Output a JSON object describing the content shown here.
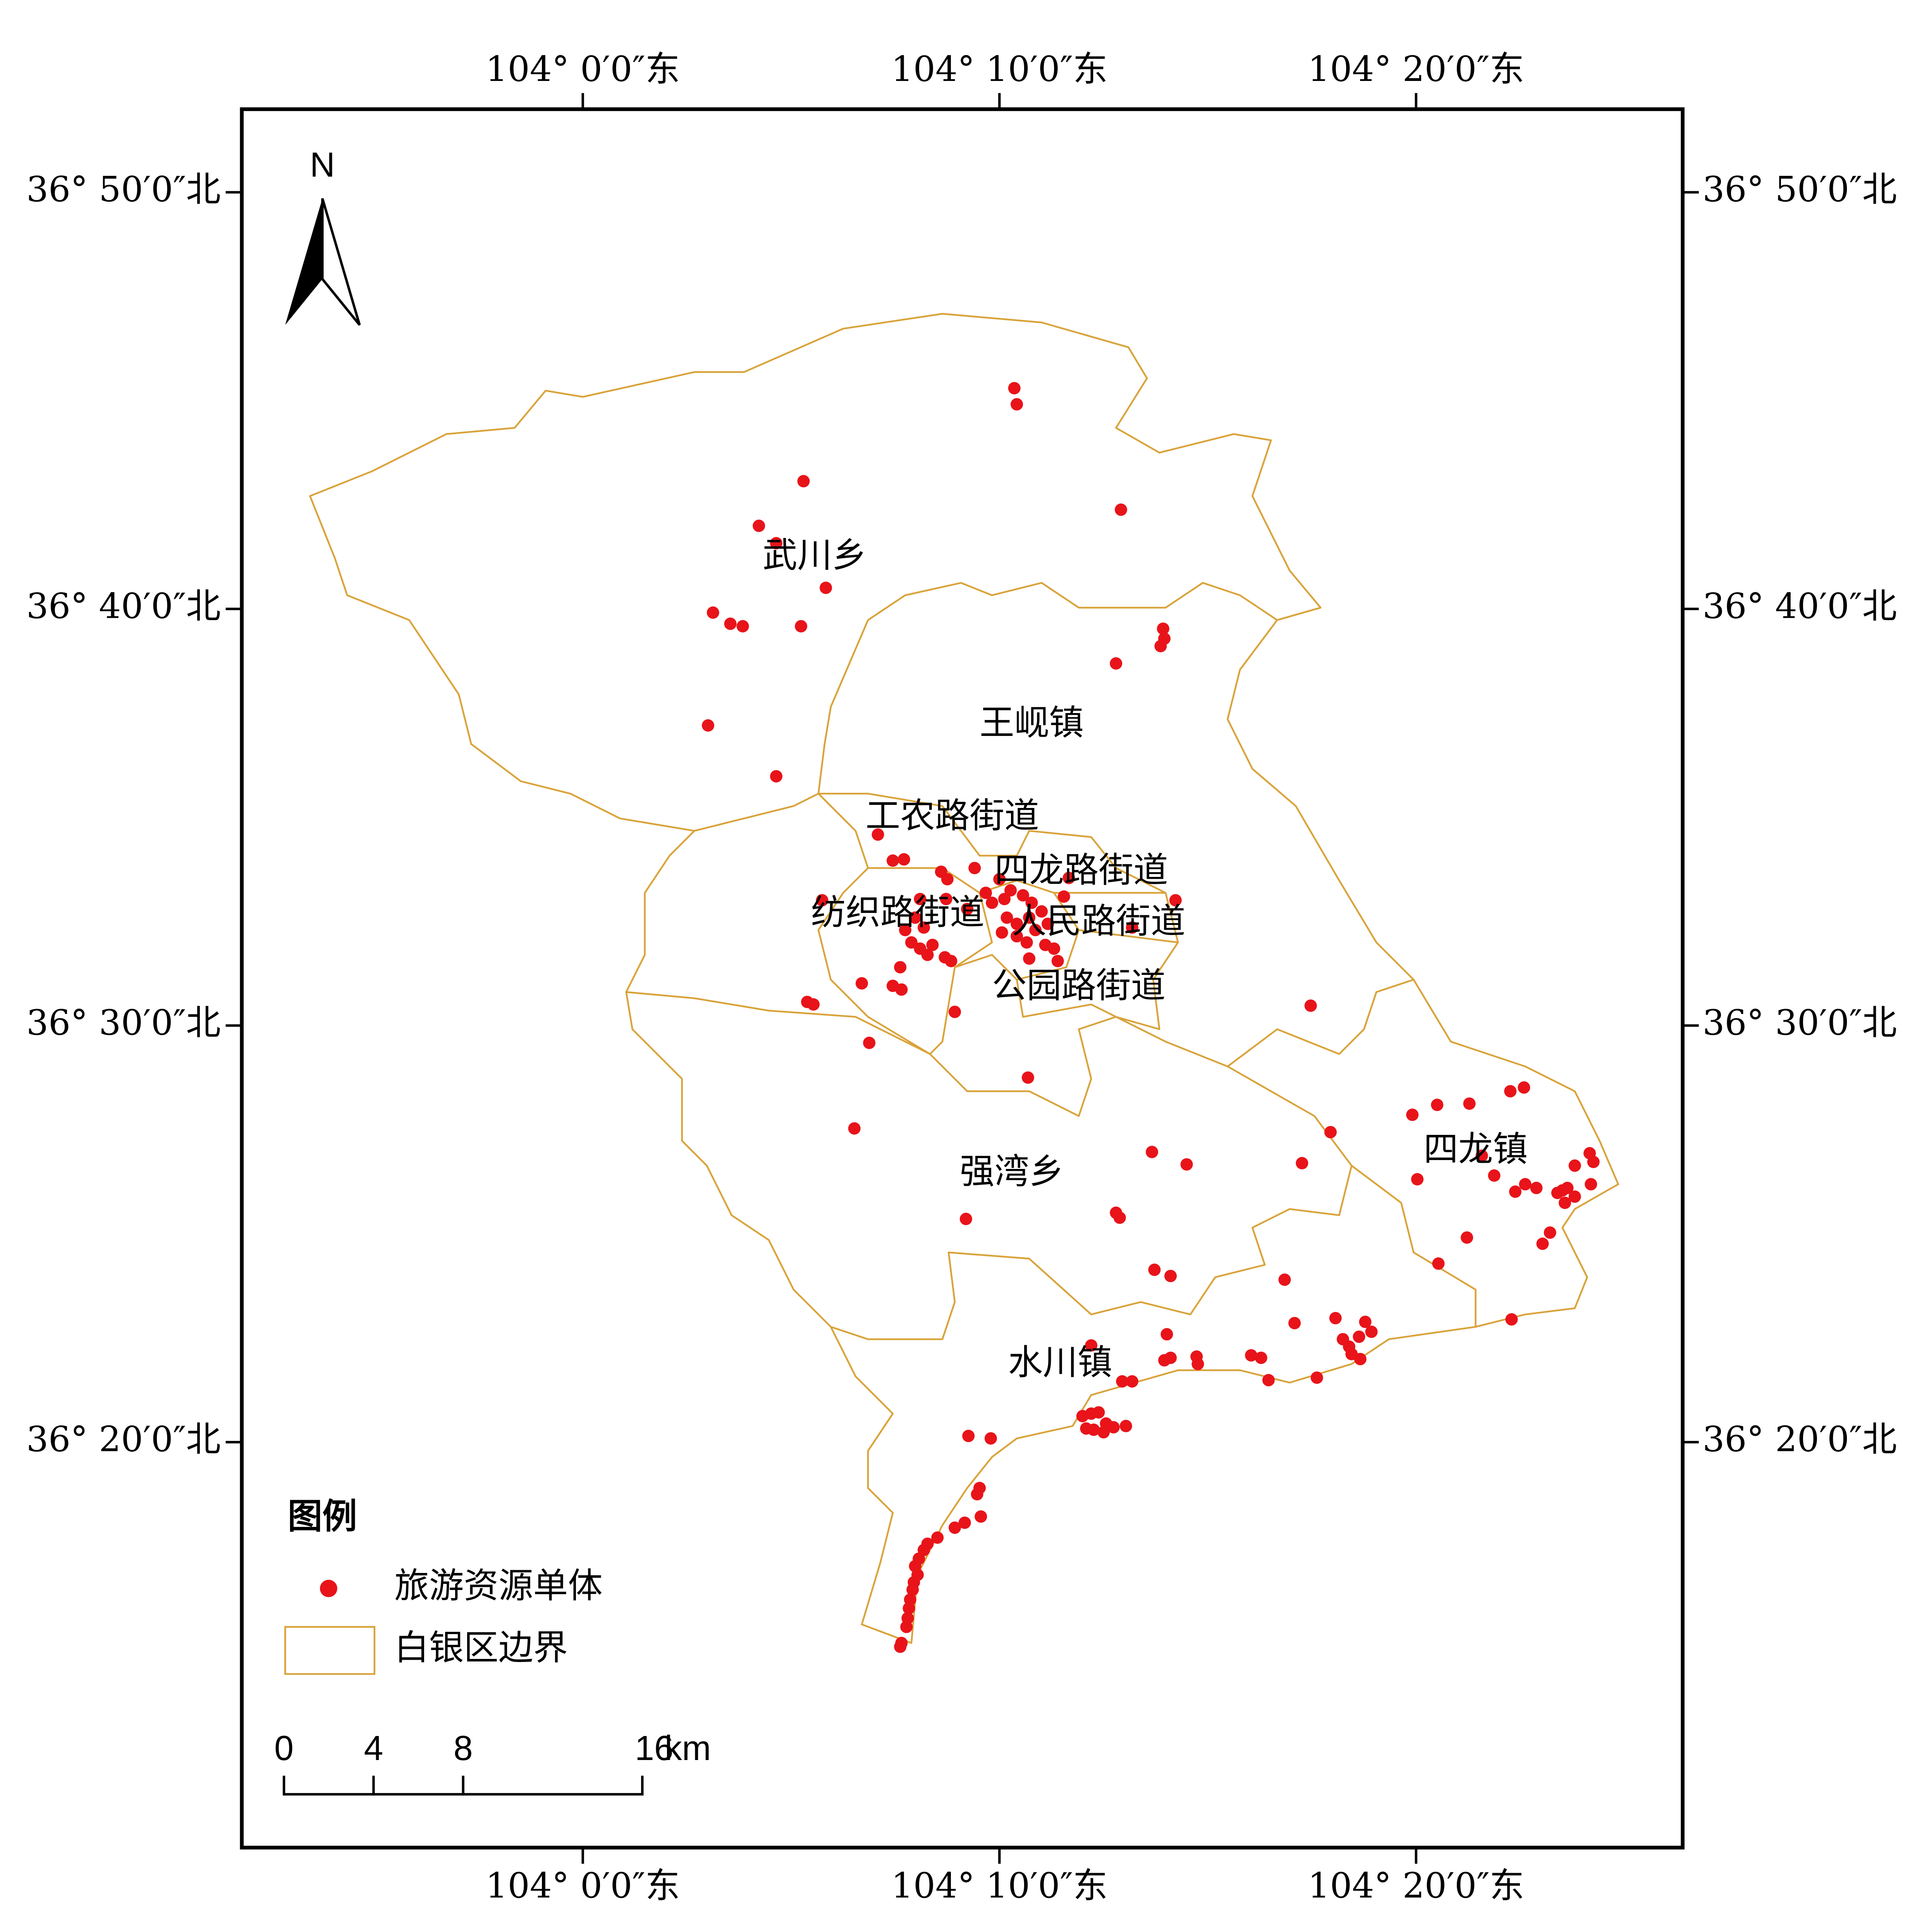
{
  "map": {
    "north": "N",
    "longitude_labels": [
      "104° 0′0″东",
      "104° 10′0″东",
      "104° 20′0″东"
    ],
    "latitude_labels": [
      "36° 50′0″北",
      "36° 40′0″北",
      "36° 30′0″北",
      "36° 20′0″北"
    ],
    "regions": [
      "武川乡",
      "王岘镇",
      "工农路街道",
      "四龙路街道",
      "纺织路街道",
      "人民路街道",
      "公园路街道",
      "强湾乡",
      "四龙镇",
      "水川镇"
    ],
    "legend": {
      "title": "图例",
      "items": [
        "旅游资源单体",
        "白银区边界"
      ]
    },
    "scale_bar": {
      "ticks": [
        0,
        4,
        8,
        16
      ],
      "unit": "km"
    }
  }
}
